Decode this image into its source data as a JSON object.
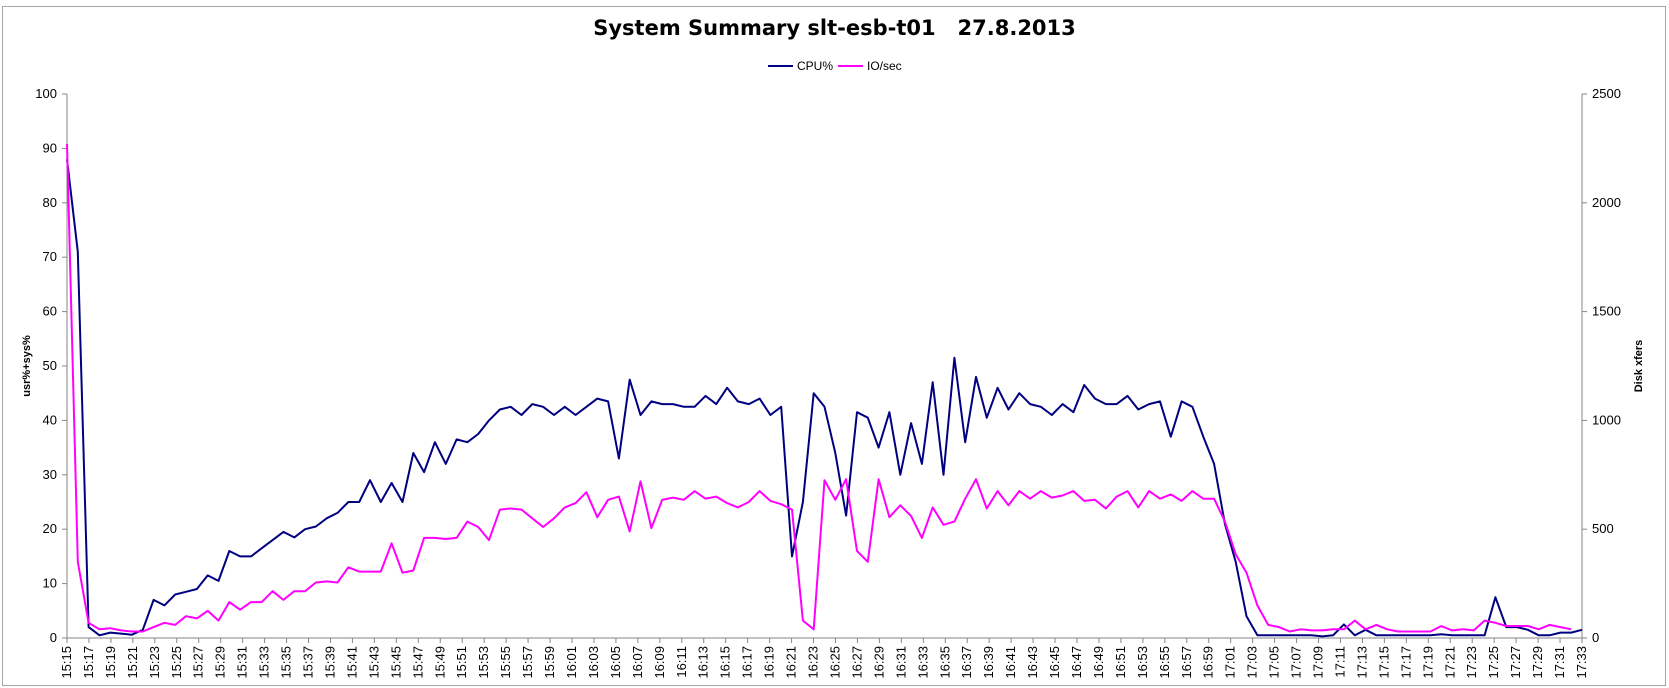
{
  "chart_data": {
    "type": "line",
    "title": "System Summary slt-esb-t01   27.8.2013",
    "xlabel": "",
    "ylabel": "usr%+sys%",
    "y2label": "Disk xfers",
    "ylim": [
      0,
      100
    ],
    "y2lim": [
      0,
      2500
    ],
    "y_ticks": [
      0,
      10,
      20,
      30,
      40,
      50,
      60,
      70,
      80,
      90,
      100
    ],
    "y2_ticks": [
      0,
      500,
      1000,
      1500,
      2000,
      2500
    ],
    "grid": false,
    "legend_position": "top-center",
    "x_start": "15:15",
    "x_tick_labels": [
      "15:15",
      "15:17",
      "15:19",
      "15:21",
      "15:23",
      "15:25",
      "15:27",
      "15:29",
      "15:31",
      "15:33",
      "15:35",
      "15:37",
      "15:39",
      "15:41",
      "15:43",
      "15:45",
      "15:47",
      "15:49",
      "15:51",
      "15:53",
      "15:55",
      "15:57",
      "15:59",
      "16:01",
      "16:03",
      "16:05",
      "16:07",
      "16:09",
      "16:11",
      "16:13",
      "16:15",
      "16:17",
      "16:19",
      "16:21",
      "16:23",
      "16:25",
      "16:27",
      "16:29",
      "16:31",
      "16:33",
      "16:35",
      "16:37",
      "16:39",
      "16:41",
      "16:43",
      "16:45",
      "16:47",
      "16:49",
      "16:51",
      "16:53",
      "16:55",
      "16:57",
      "16:59",
      "17:01",
      "17:03",
      "17:05",
      "17:07",
      "17:09",
      "17:11",
      "17:13",
      "17:15",
      "17:17",
      "17:19",
      "17:21",
      "17:23",
      "17:25",
      "17:27",
      "17:29",
      "17:31",
      "17:33"
    ],
    "series": [
      {
        "name": "CPU%",
        "axis": "left",
        "color": "#000080",
        "values": [
          88,
          71,
          2,
          0.5,
          1,
          0.8,
          0.6,
          1.5,
          7,
          6,
          8,
          8.5,
          9,
          11.5,
          10.5,
          16,
          15,
          15,
          16.5,
          18,
          19.5,
          18.5,
          20,
          20.5,
          22,
          23,
          25,
          25,
          29,
          25,
          28.5,
          25,
          34,
          30.5,
          36,
          32,
          36.5,
          36,
          37.5,
          40,
          42,
          42.5,
          41,
          43,
          42.5,
          41,
          42.5,
          41,
          42.5,
          44,
          43.5,
          33,
          47.5,
          41,
          43.5,
          43,
          43,
          42.5,
          42.5,
          44.5,
          43,
          46,
          43.5,
          43,
          44,
          41,
          42.5,
          15,
          25,
          45,
          42.5,
          34,
          22.5,
          41.5,
          40.5,
          35,
          41.5,
          30,
          39.5,
          32,
          47,
          30,
          51.5,
          36,
          48,
          40.5,
          46,
          42,
          45,
          43,
          42.5,
          41,
          43,
          41.5,
          46.5,
          44,
          43,
          43,
          44.5,
          42,
          43,
          43.5,
          37,
          43.5,
          42.5,
          37,
          32,
          21,
          14,
          4,
          0.5,
          0.5,
          0.5,
          0.5,
          0.5,
          0.5,
          0.3,
          0.5,
          2.5,
          0.5,
          1.5,
          0.5,
          0.5,
          0.5,
          0.5,
          0.5,
          0.5,
          0.7,
          0.5,
          0.5,
          0.5,
          0.5,
          7.5,
          2,
          2,
          1.5,
          0.5,
          0.5,
          1,
          1,
          1.5
        ]
      },
      {
        "name": "IO/sec",
        "axis": "right",
        "color": "#ff00ff",
        "values": [
          2270,
          350,
          70,
          40,
          45,
          35,
          30,
          30,
          50,
          70,
          60,
          100,
          90,
          125,
          80,
          165,
          130,
          165,
          165,
          215,
          175,
          215,
          215,
          255,
          260,
          255,
          325,
          305,
          305,
          305,
          435,
          300,
          310,
          460,
          460,
          455,
          460,
          535,
          510,
          450,
          590,
          595,
          590,
          550,
          510,
          550,
          600,
          620,
          670,
          555,
          635,
          650,
          490,
          720,
          505,
          635,
          645,
          635,
          675,
          640,
          650,
          620,
          600,
          625,
          675,
          630,
          615,
          590,
          80,
          40,
          725,
          635,
          730,
          400,
          350,
          730,
          555,
          610,
          560,
          460,
          600,
          520,
          535,
          640,
          730,
          595,
          675,
          610,
          675,
          640,
          675,
          645,
          655,
          675,
          630,
          635,
          595,
          650,
          675,
          600,
          675,
          640,
          660,
          630,
          675,
          640,
          640,
          535,
          385,
          300,
          150,
          60,
          50,
          30,
          40,
          35,
          35,
          40,
          40,
          80,
          40,
          60,
          40,
          30,
          30,
          30,
          30,
          55,
          35,
          40,
          35,
          80,
          70,
          55,
          55,
          55,
          40,
          60,
          50,
          40
        ]
      }
    ]
  }
}
